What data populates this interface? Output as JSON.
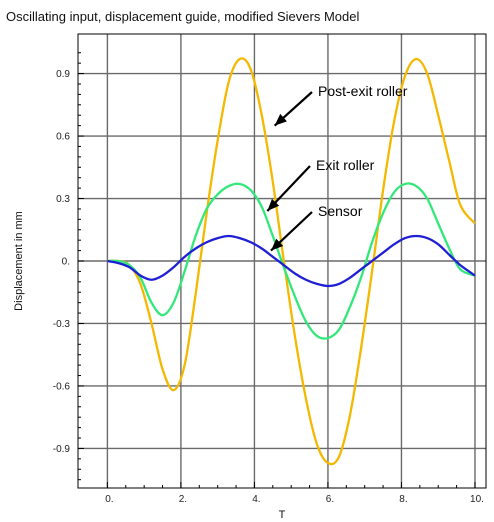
{
  "chart_data": {
    "type": "line",
    "title": "Oscillating input, displacement guide, modified Sievers Model",
    "xlabel": "T",
    "ylabel": "Displacement in mm",
    "xlim": [
      -0.8,
      10.3
    ],
    "ylim": [
      -1.09,
      1.09
    ],
    "xticks": [
      0,
      2,
      4,
      6,
      8,
      10
    ],
    "xtick_labels": [
      "0.",
      "2.",
      "4.",
      "6.",
      "8.",
      "10."
    ],
    "yticks": [
      0.9,
      0.6,
      0.3,
      0,
      -0.3,
      -0.6,
      -0.9
    ],
    "ytick_labels": [
      "0.9",
      "0.6",
      "0.3",
      "0.",
      "-0.3",
      "-0.6",
      "-0.9"
    ],
    "grid": true,
    "series": [
      {
        "name": "Post-exit roller",
        "color": "#F5B800",
        "x": [
          0,
          0.3,
          0.6,
          0.9,
          1.2,
          1.5,
          1.8,
          2.1,
          2.4,
          2.7,
          3.0,
          3.3,
          3.6,
          3.9,
          4.2,
          4.5,
          4.8,
          5.1,
          5.4,
          5.7,
          6.0,
          6.3,
          6.6,
          6.9,
          7.2,
          7.5,
          7.8,
          8.1,
          8.4,
          8.7,
          9.0,
          9.3,
          9.6,
          10.0
        ],
        "y": [
          0,
          0,
          -0.02,
          -0.11,
          -0.3,
          -0.52,
          -0.62,
          -0.5,
          -0.16,
          0.23,
          0.58,
          0.86,
          0.97,
          0.92,
          0.7,
          0.38,
          0.0,
          -0.36,
          -0.66,
          -0.88,
          -0.97,
          -0.94,
          -0.74,
          -0.42,
          -0.05,
          0.34,
          0.67,
          0.89,
          0.97,
          0.9,
          0.7,
          0.48,
          0.27,
          0.18
        ]
      },
      {
        "name": "Exit roller",
        "color": "#33E87A",
        "x": [
          0,
          0.3,
          0.6,
          0.9,
          1.2,
          1.5,
          1.8,
          2.1,
          2.4,
          2.7,
          3.0,
          3.3,
          3.6,
          3.9,
          4.2,
          4.5,
          4.8,
          5.1,
          5.4,
          5.7,
          6.0,
          6.3,
          6.6,
          6.9,
          7.2,
          7.5,
          7.8,
          8.1,
          8.4,
          8.7,
          9.0,
          9.3,
          9.6,
          10.0
        ],
        "y": [
          0,
          0,
          -0.02,
          -0.08,
          -0.2,
          -0.26,
          -0.2,
          -0.05,
          0.12,
          0.25,
          0.32,
          0.36,
          0.37,
          0.34,
          0.26,
          0.12,
          -0.03,
          -0.17,
          -0.29,
          -0.36,
          -0.37,
          -0.33,
          -0.22,
          -0.08,
          0.09,
          0.23,
          0.33,
          0.37,
          0.36,
          0.3,
          0.18,
          0.06,
          -0.04,
          -0.07
        ]
      },
      {
        "name": "Sensor",
        "color": "#1F1FD6",
        "x": [
          0,
          0.3,
          0.6,
          0.9,
          1.2,
          1.5,
          1.8,
          2.1,
          2.4,
          2.7,
          3.0,
          3.3,
          3.6,
          3.9,
          4.2,
          4.5,
          4.8,
          5.1,
          5.4,
          5.7,
          6.0,
          6.3,
          6.6,
          6.9,
          7.2,
          7.5,
          7.8,
          8.1,
          8.4,
          8.7,
          9.0,
          9.3,
          9.6,
          10.0
        ],
        "y": [
          0,
          -0.01,
          -0.03,
          -0.07,
          -0.09,
          -0.07,
          -0.03,
          0.02,
          0.06,
          0.09,
          0.11,
          0.12,
          0.11,
          0.09,
          0.06,
          0.02,
          -0.02,
          -0.06,
          -0.09,
          -0.11,
          -0.12,
          -0.11,
          -0.08,
          -0.04,
          0.0,
          0.04,
          0.08,
          0.11,
          0.12,
          0.11,
          0.08,
          0.03,
          -0.02,
          -0.07
        ]
      }
    ],
    "annotations": [
      {
        "text": "Post-exit roller",
        "arrow_to": [
          4.55,
          0.65
        ]
      },
      {
        "text": "Exit roller",
        "arrow_to": [
          4.35,
          0.24
        ]
      },
      {
        "text": "Sensor",
        "arrow_to": [
          4.45,
          0.05
        ]
      }
    ]
  }
}
